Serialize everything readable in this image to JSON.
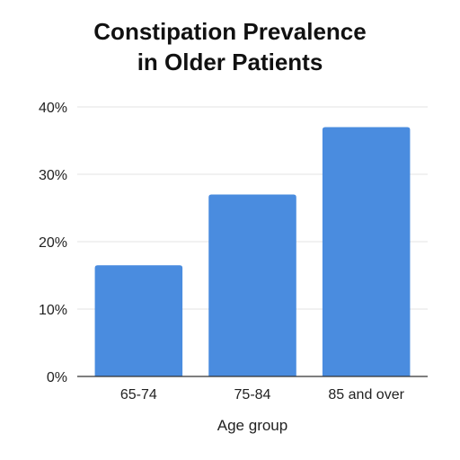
{
  "chart_data": {
    "type": "bar",
    "title_lines": [
      "Constipation Prevalence",
      "in Older Patients"
    ],
    "categories": [
      "65-74",
      "75-84",
      "85 and over"
    ],
    "values": [
      16.5,
      27,
      37
    ],
    "xlabel": "Age group",
    "ylabel": "",
    "ylim": [
      0,
      40
    ],
    "yticks": [
      "0%",
      "10%",
      "20%",
      "30%",
      "40%"
    ],
    "grid": true,
    "bar_color": "#4a8cdf"
  }
}
